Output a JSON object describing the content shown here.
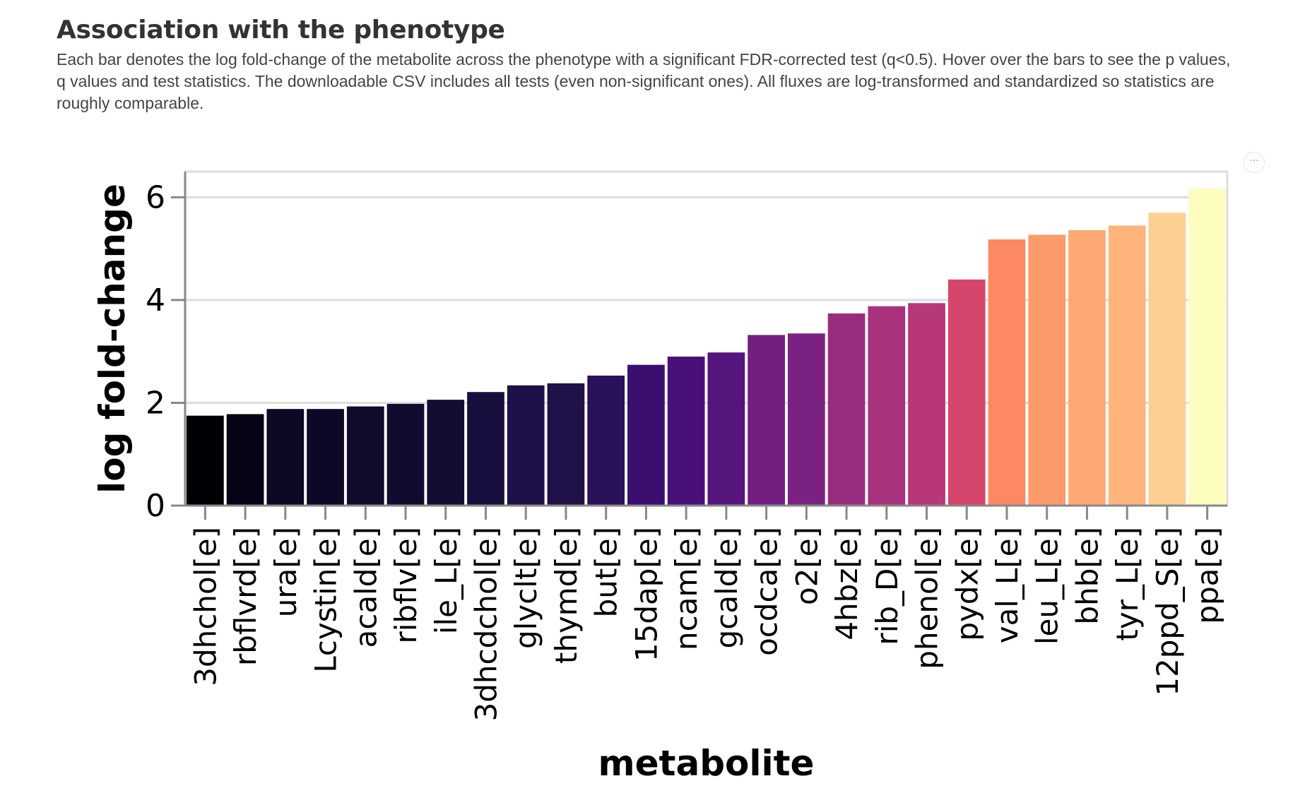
{
  "header": {
    "title": "Association with the phenotype",
    "description": "Each bar denotes the log fold-change of the metabolite across the phenotype with a significant FDR-corrected test (q<0.5). Hover over the bars to see the p values, q values and test statistics. The downloadable CSV includes all tests (even non-significant ones). All fluxes are log-transformed and standardized so statistics are roughly comparable."
  },
  "menu": {
    "label": "···",
    "icon": "ellipsis-icon"
  },
  "chart_data": {
    "type": "bar",
    "xlabel": "metabolite",
    "ylabel": "log fold-change",
    "ylim": [
      0,
      6.5
    ],
    "yticks": [
      0,
      2,
      4,
      6
    ],
    "grid": true,
    "colormap": "magma",
    "categories": [
      "3dhchol[e]",
      "rbflvrd[e]",
      "ura[e]",
      "Lcystin[e]",
      "acald[e]",
      "ribflv[e]",
      "ile_L[e]",
      "3dhcdchol[e]",
      "glyclt[e]",
      "thymd[e]",
      "but[e]",
      "15dap[e]",
      "ncam[e]",
      "gcald[e]",
      "ocdca[e]",
      "o2[e]",
      "4hbz[e]",
      "rib_D[e]",
      "phenol[e]",
      "pydx[e]",
      "val_L[e]",
      "leu_L[e]",
      "bhb[e]",
      "tyr_L[e]",
      "12ppd_S[e]",
      "ppa[e]"
    ],
    "values": [
      1.75,
      1.78,
      1.88,
      1.88,
      1.93,
      1.98,
      2.06,
      2.21,
      2.34,
      2.38,
      2.53,
      2.74,
      2.9,
      2.98,
      3.32,
      3.35,
      3.74,
      3.88,
      3.94,
      4.4,
      5.18,
      5.27,
      5.36,
      5.45,
      5.7,
      6.17
    ],
    "colors": [
      "#000004",
      "#050416",
      "#0b0924",
      "#0c0926",
      "#0e0b2b",
      "#100c2f",
      "#120d32",
      "#180f3e",
      "#1d1147",
      "#201248",
      "#2a115a",
      "#3b0f70",
      "#4a1079",
      "#56147d",
      "#721f81",
      "#7a2181",
      "#982d80",
      "#a8327d",
      "#b73779",
      "#d6456c",
      "#fc8961",
      "#fd9a6a",
      "#fea973",
      "#feb47b",
      "#fecf92",
      "#fcfdbf"
    ]
  }
}
